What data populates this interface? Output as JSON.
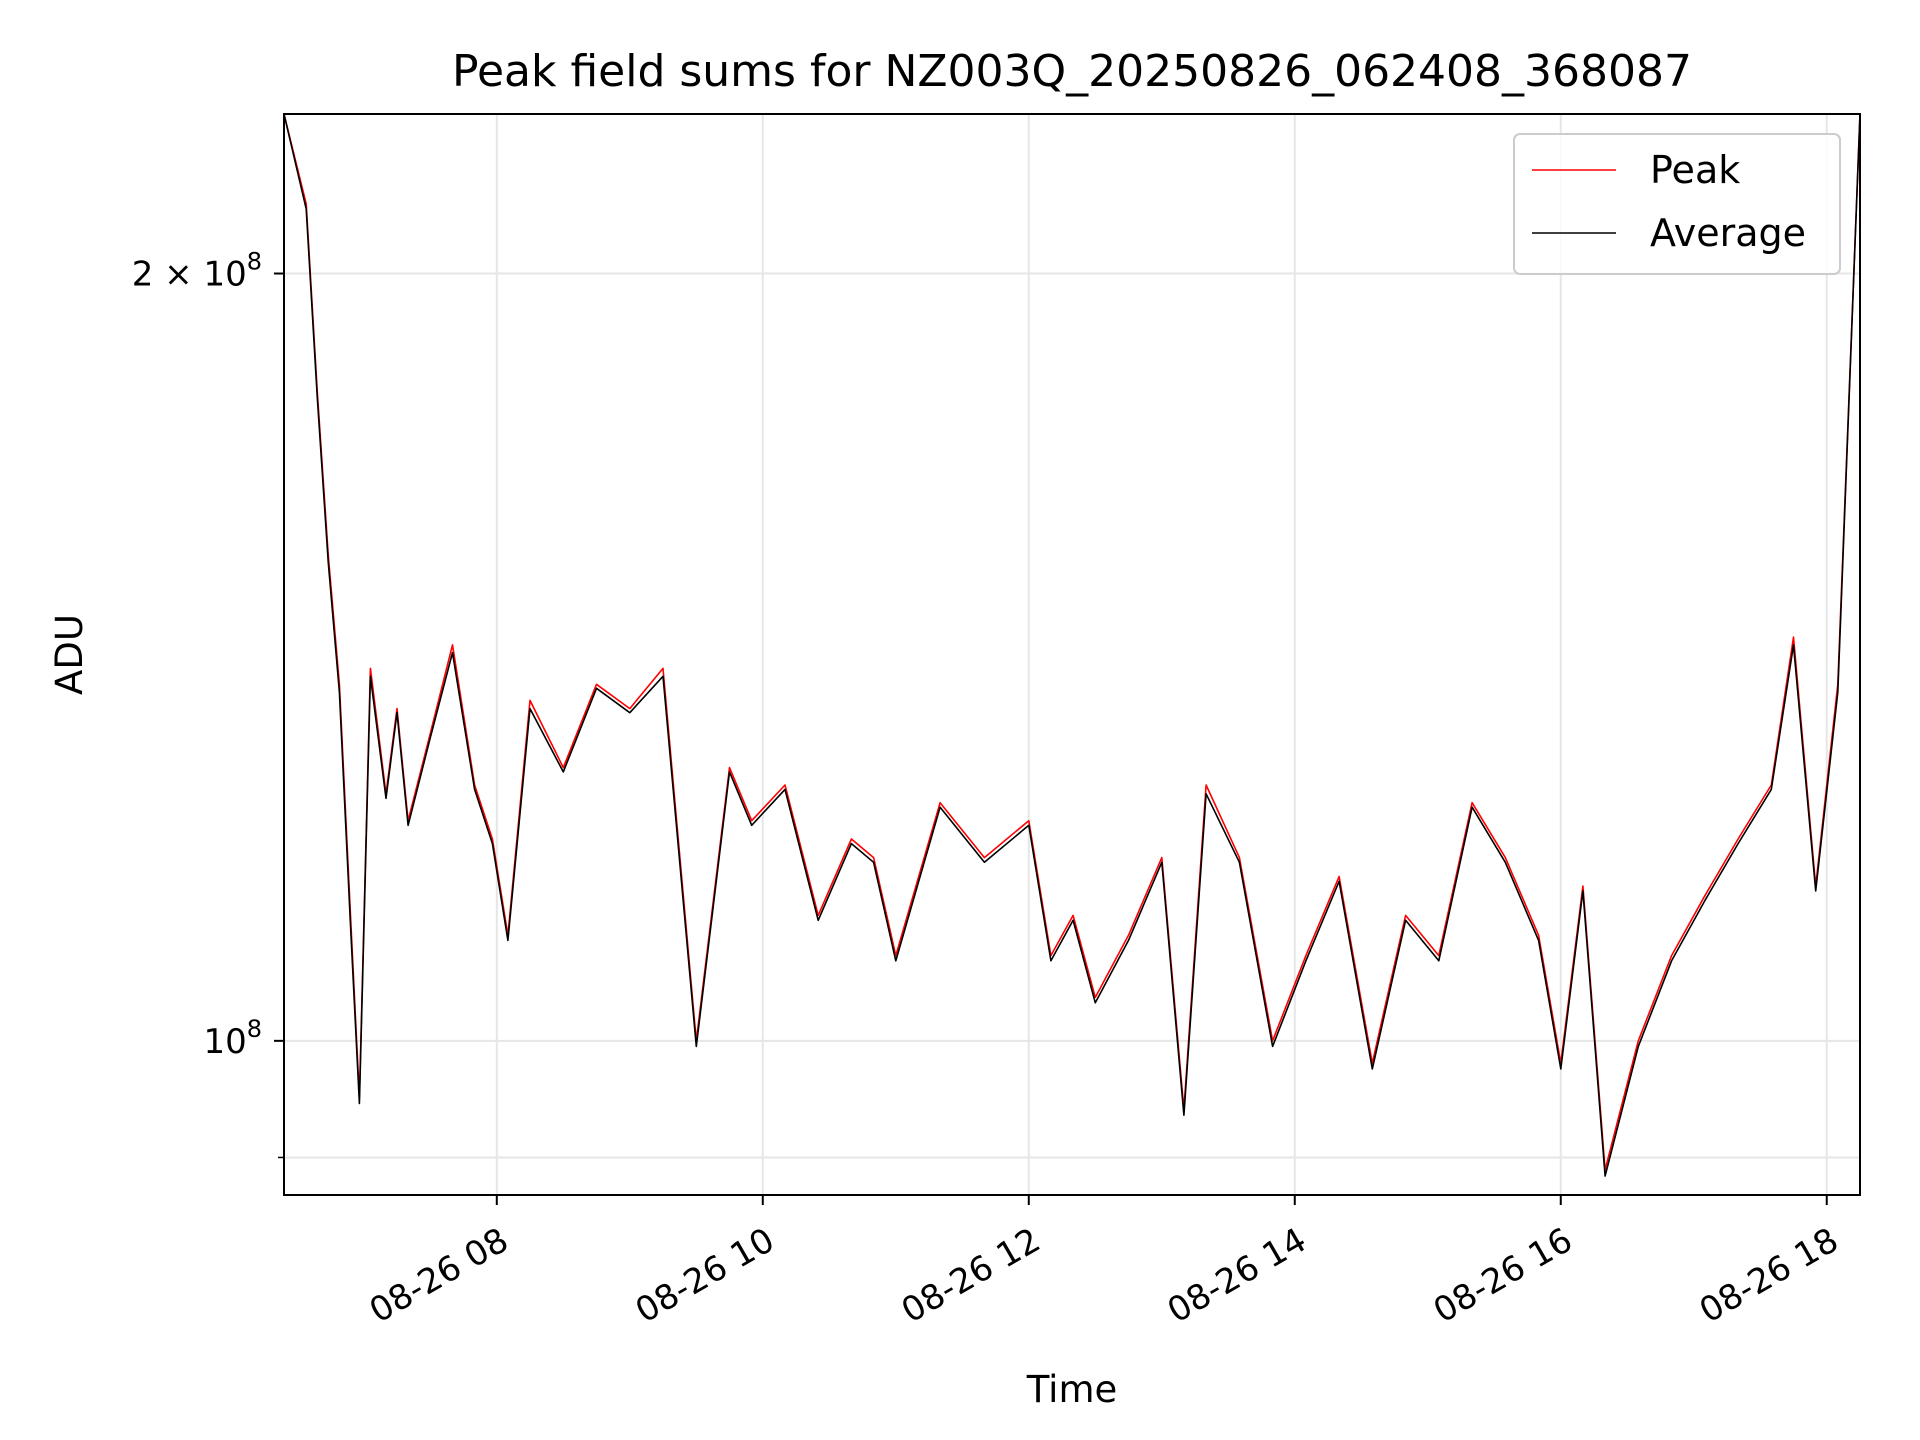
{
  "chart_data": {
    "type": "line",
    "title": "Peak field sums for NZ003Q_20250826_062408_368087",
    "xlabel": "Time",
    "ylabel": "ADU",
    "xlim": [
      "2025-08-26 06:24",
      "2025-08-26 18:15"
    ],
    "ylim": [
      87000000,
      231000000
    ],
    "yscale": "log",
    "grid": true,
    "legend_position": "top-right",
    "x_ticks": [
      {
        "value": "2025-08-26 08:00",
        "label": "08-26 08"
      },
      {
        "value": "2025-08-26 10:00",
        "label": "08-26 10"
      },
      {
        "value": "2025-08-26 12:00",
        "label": "08-26 12"
      },
      {
        "value": "2025-08-26 14:00",
        "label": "08-26 14"
      },
      {
        "value": "2025-08-26 16:00",
        "label": "08-26 16"
      },
      {
        "value": "2025-08-26 18:00",
        "label": "08-26 18"
      }
    ],
    "y_ticks": [
      {
        "value": 100000000,
        "label_base": "10",
        "label_exp": "8",
        "label_coef": ""
      },
      {
        "value": 200000000,
        "label_base": "10",
        "label_exp": "8",
        "label_coef": "2 × "
      }
    ],
    "y_minor_ticks": [
      90000000
    ],
    "series": [
      {
        "name": "Peak",
        "color": "#ff0000",
        "x": [
          "2025-08-26 06:24",
          "2025-08-26 06:34",
          "2025-08-26 06:39",
          "2025-08-26 06:44",
          "2025-08-26 06:49",
          "2025-08-26 06:54",
          "2025-08-26 06:58",
          "2025-08-26 07:03",
          "2025-08-26 07:10",
          "2025-08-26 07:15",
          "2025-08-26 07:20",
          "2025-08-26 07:30",
          "2025-08-26 07:40",
          "2025-08-26 07:50",
          "2025-08-26 07:58",
          "2025-08-26 08:05",
          "2025-08-26 08:15",
          "2025-08-26 08:30",
          "2025-08-26 08:45",
          "2025-08-26 09:00",
          "2025-08-26 09:15",
          "2025-08-26 09:30",
          "2025-08-26 09:45",
          "2025-08-26 09:55",
          "2025-08-26 10:10",
          "2025-08-26 10:25",
          "2025-08-26 10:40",
          "2025-08-26 10:50",
          "2025-08-26 11:00",
          "2025-08-26 11:20",
          "2025-08-26 11:40",
          "2025-08-26 12:00",
          "2025-08-26 12:10",
          "2025-08-26 12:20",
          "2025-08-26 12:30",
          "2025-08-26 12:45",
          "2025-08-26 13:00",
          "2025-08-26 13:10",
          "2025-08-26 13:20",
          "2025-08-26 13:35",
          "2025-08-26 13:50",
          "2025-08-26 14:05",
          "2025-08-26 14:20",
          "2025-08-26 14:35",
          "2025-08-26 14:50",
          "2025-08-26 15:05",
          "2025-08-26 15:20",
          "2025-08-26 15:35",
          "2025-08-26 15:50",
          "2025-08-26 16:00",
          "2025-08-26 16:10",
          "2025-08-26 16:20",
          "2025-08-26 16:35",
          "2025-08-26 16:50",
          "2025-08-26 17:05",
          "2025-08-26 17:20",
          "2025-08-26 17:35",
          "2025-08-26 17:45",
          "2025-08-26 17:55",
          "2025-08-26 18:05",
          "2025-08-26 18:15"
        ],
        "y": [
          231000000,
          213000000,
          180000000,
          155000000,
          138000000,
          112000000,
          95000000,
          140000000,
          125000000,
          135000000,
          122000000,
          132000000,
          143000000,
          126000000,
          120000000,
          110000000,
          136000000,
          128000000,
          138000000,
          135000000,
          140000000,
          100000000,
          128000000,
          122000000,
          126000000,
          112000000,
          120000000,
          118000000,
          108000000,
          124000000,
          118000000,
          122000000,
          108000000,
          112000000,
          104000000,
          110000000,
          118000000,
          94000000,
          126000000,
          118000000,
          100000000,
          108000000,
          116000000,
          98000000,
          112000000,
          108000000,
          124000000,
          118000000,
          110000000,
          98000000,
          115000000,
          89000000,
          100000000,
          108000000,
          114000000,
          120000000,
          126000000,
          144000000,
          115000000,
          138000000,
          231000000
        ]
      },
      {
        "name": "Average",
        "color": "#000000",
        "x": [
          "2025-08-26 06:24",
          "2025-08-26 06:34",
          "2025-08-26 06:39",
          "2025-08-26 06:44",
          "2025-08-26 06:49",
          "2025-08-26 06:54",
          "2025-08-26 06:58",
          "2025-08-26 07:03",
          "2025-08-26 07:10",
          "2025-08-26 07:15",
          "2025-08-26 07:20",
          "2025-08-26 07:30",
          "2025-08-26 07:40",
          "2025-08-26 07:50",
          "2025-08-26 07:58",
          "2025-08-26 08:05",
          "2025-08-26 08:15",
          "2025-08-26 08:30",
          "2025-08-26 08:45",
          "2025-08-26 09:00",
          "2025-08-26 09:15",
          "2025-08-26 09:30",
          "2025-08-26 09:45",
          "2025-08-26 09:55",
          "2025-08-26 10:10",
          "2025-08-26 10:25",
          "2025-08-26 10:40",
          "2025-08-26 10:50",
          "2025-08-26 11:00",
          "2025-08-26 11:20",
          "2025-08-26 11:40",
          "2025-08-26 12:00",
          "2025-08-26 12:10",
          "2025-08-26 12:20",
          "2025-08-26 12:30",
          "2025-08-26 12:45",
          "2025-08-26 13:00",
          "2025-08-26 13:10",
          "2025-08-26 13:20",
          "2025-08-26 13:35",
          "2025-08-26 13:50",
          "2025-08-26 14:05",
          "2025-08-26 14:20",
          "2025-08-26 14:35",
          "2025-08-26 14:50",
          "2025-08-26 15:05",
          "2025-08-26 15:20",
          "2025-08-26 15:35",
          "2025-08-26 15:50",
          "2025-08-26 16:00",
          "2025-08-26 16:10",
          "2025-08-26 16:20",
          "2025-08-26 16:35",
          "2025-08-26 16:50",
          "2025-08-26 17:05",
          "2025-08-26 17:20",
          "2025-08-26 17:35",
          "2025-08-26 17:45",
          "2025-08-26 17:55",
          "2025-08-26 18:05",
          "2025-08-26 18:15"
        ],
        "y": [
          231000000,
          212000000,
          179000000,
          154000000,
          137000000,
          111000000,
          94500000,
          139000000,
          124500000,
          134500000,
          121500000,
          131500000,
          142000000,
          125500000,
          119500000,
          109500000,
          135000000,
          127500000,
          137500000,
          134500000,
          139000000,
          99500000,
          127500000,
          121500000,
          125500000,
          111500000,
          119500000,
          117500000,
          107500000,
          123500000,
          117500000,
          121500000,
          107500000,
          111500000,
          103500000,
          109500000,
          117500000,
          93500000,
          125000000,
          117500000,
          99500000,
          107500000,
          115500000,
          97500000,
          111500000,
          107500000,
          123500000,
          117500000,
          109500000,
          97500000,
          114500000,
          88500000,
          99500000,
          107500000,
          113500000,
          119500000,
          125500000,
          143000000,
          114500000,
          137000000,
          231000000
        ]
      }
    ]
  }
}
